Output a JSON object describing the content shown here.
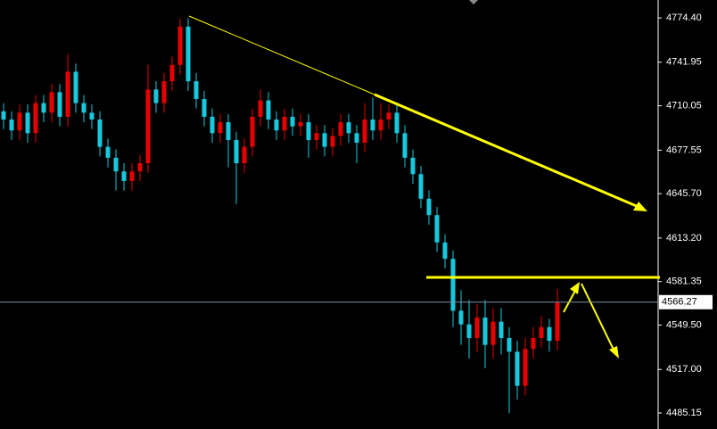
{
  "chart_data": {
    "type": "candlestick",
    "open": [
      4706,
      4700,
      4692,
      4705,
      4690,
      4712,
      4705,
      4720,
      4702,
      4735,
      4712,
      4705,
      4700,
      4680,
      4672,
      4662,
      4655,
      4662,
      4668,
      4722,
      4712,
      4728,
      4740,
      4768,
      4728,
      4715,
      4702,
      4690,
      4698,
      4685,
      4668,
      4680,
      4702,
      4714,
      4700,
      4692,
      4702,
      4695,
      4698,
      4685,
      4690,
      4680,
      4688,
      4698,
      4690,
      4683,
      4700,
      4692,
      4700,
      4705,
      4690,
      4672,
      4660,
      4642,
      4630,
      4610,
      4598,
      4560,
      4550,
      4540,
      4555,
      4535,
      4552,
      4540,
      4530,
      4505,
      4532,
      4540,
      4548,
      4538
    ],
    "high": [
      4712,
      4706,
      4711,
      4711,
      4718,
      4718,
      4726,
      4726,
      4748,
      4741,
      4718,
      4711,
      4706,
      4686,
      4678,
      4668,
      4668,
      4674,
      4740,
      4728,
      4734,
      4746,
      4774,
      4774,
      4734,
      4721,
      4708,
      4704,
      4704,
      4691,
      4686,
      4708,
      4722,
      4720,
      4706,
      4708,
      4708,
      4704,
      4704,
      4696,
      4696,
      4694,
      4704,
      4704,
      4696,
      4712,
      4716,
      4712,
      4711,
      4711,
      4696,
      4678,
      4666,
      4648,
      4636,
      4616,
      4604,
      4575,
      4568,
      4565,
      4568,
      4562,
      4562,
      4548,
      4538,
      4540,
      4548,
      4556,
      4554,
      4576
    ],
    "low": [
      4693,
      4685,
      4685,
      4683,
      4683,
      4698,
      4698,
      4695,
      4695,
      4705,
      4698,
      4693,
      4673,
      4665,
      4648,
      4648,
      4648,
      4655,
      4661,
      4705,
      4705,
      4721,
      4733,
      4721,
      4708,
      4695,
      4683,
      4683,
      4665,
      4638,
      4661,
      4673,
      4695,
      4693,
      4685,
      4685,
      4688,
      4688,
      4672,
      4678,
      4673,
      4673,
      4681,
      4683,
      4668,
      4676,
      4685,
      4685,
      4693,
      4683,
      4665,
      4653,
      4635,
      4623,
      4603,
      4591,
      4548,
      4535,
      4525,
      4530,
      4518,
      4525,
      4528,
      4485,
      4495,
      4498,
      4525,
      4533,
      4530,
      4531
    ],
    "close": [
      4700,
      4692,
      4705,
      4690,
      4712,
      4705,
      4720,
      4702,
      4735,
      4712,
      4705,
      4700,
      4680,
      4672,
      4662,
      4655,
      4662,
      4668,
      4722,
      4712,
      4728,
      4740,
      4768,
      4728,
      4715,
      4702,
      4690,
      4698,
      4685,
      4668,
      4680,
      4702,
      4714,
      4700,
      4692,
      4702,
      4695,
      4698,
      4685,
      4690,
      4680,
      4688,
      4698,
      4690,
      4683,
      4700,
      4692,
      4700,
      4705,
      4690,
      4672,
      4660,
      4642,
      4630,
      4610,
      4598,
      4560,
      4550,
      4540,
      4555,
      4535,
      4552,
      4540,
      4530,
      4505,
      4532,
      4540,
      4548,
      4538,
      4566
    ],
    "up_color": "#e60000",
    "down_color": "#17c9de",
    "ylim": [
      4473.4,
      4787.5
    ],
    "yticks": [
      {
        "value": 4774.4,
        "label": "4774.40"
      },
      4741.95,
      {
        "value": 4710.05,
        "label": "4710.05"
      },
      4677.55,
      {
        "value": 4645.7,
        "label": "4645.70"
      },
      {
        "value": 4613.2,
        "label": "4613.20"
      },
      4581.35,
      {
        "value": 4549.5,
        "label": "4549.50"
      },
      {
        "value": 4517,
        "label": "4517.00"
      },
      4485.15
    ],
    "last_price": 4566.27
  }
}
